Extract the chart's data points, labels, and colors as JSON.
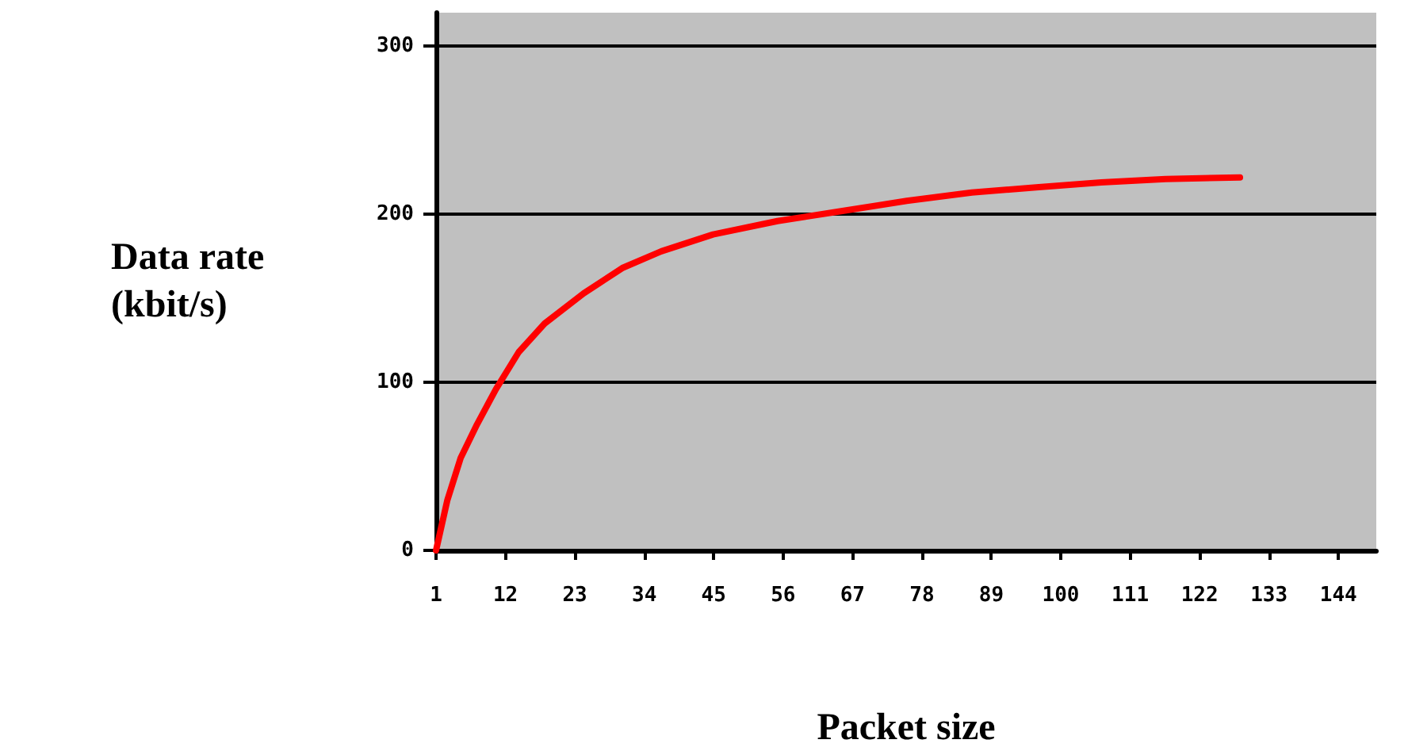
{
  "chart_data": {
    "type": "line",
    "xlabel": "Packet size",
    "ylabel": "Data rate\n(kbit/s)",
    "x": [
      1,
      2.8,
      4.9,
      7.5,
      10.5,
      14.1,
      18.2,
      24.4,
      30.5,
      36.7,
      44.9,
      55.1,
      65.4,
      75.6,
      85.9,
      96.1,
      106.4,
      116.6,
      128.4
    ],
    "series": [
      {
        "color": "#ff0000",
        "values": [
          0,
          30,
          55,
          75,
          96,
          118,
          135,
          153,
          168,
          178,
          188,
          196,
          202,
          208,
          213,
          216,
          219,
          221,
          222
        ]
      }
    ],
    "xlim": [
      1,
      150
    ],
    "xticks": [
      1,
      12,
      23,
      34,
      45,
      56,
      67,
      78,
      89,
      100,
      111,
      122,
      133,
      144
    ],
    "ylim": [
      0,
      320
    ],
    "yticks": [
      0,
      100,
      200,
      300
    ],
    "grid": "y",
    "marker": "none",
    "line_style": "solid"
  }
}
